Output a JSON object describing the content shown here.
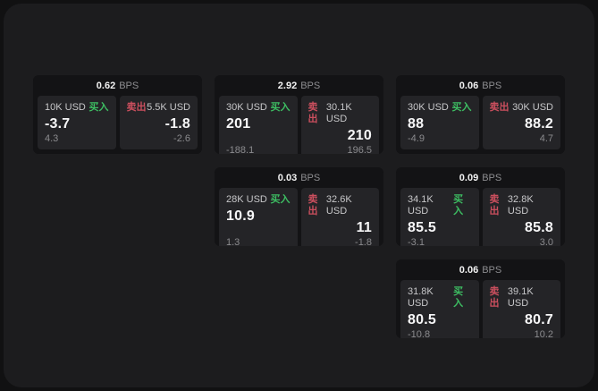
{
  "labels": {
    "bps": "BPS",
    "buy": "买入",
    "sell": "卖出"
  },
  "colors": {
    "buy": "#3dbd62",
    "sell": "#cb4f5e"
  },
  "cards": [
    {
      "bps": "0.62",
      "buy": {
        "amount": "10K USD",
        "value": "-3.7",
        "delta": "4.3"
      },
      "sell": {
        "amount": "5.5K USD",
        "value": "-1.8",
        "delta": "-2.6"
      }
    },
    {
      "bps": "2.92",
      "buy": {
        "amount": "30K USD",
        "value": "201",
        "delta": "-188.1"
      },
      "sell": {
        "amount": "30.1K USD",
        "value": "210",
        "delta": "196.5"
      }
    },
    {
      "bps": "0.06",
      "buy": {
        "amount": "30K USD",
        "value": "88",
        "delta": "-4.9"
      },
      "sell": {
        "amount": "30K USD",
        "value": "88.2",
        "delta": "4.7"
      }
    },
    {
      "bps": "0.03",
      "buy": {
        "amount": "28K USD",
        "value": "10.9",
        "delta": "1.3"
      },
      "sell": {
        "amount": "32.6K USD",
        "value": "11",
        "delta": "-1.8"
      }
    },
    {
      "bps": "0.09",
      "buy": {
        "amount": "34.1K USD",
        "value": "85.5",
        "delta": "-3.1"
      },
      "sell": {
        "amount": "32.8K USD",
        "value": "85.8",
        "delta": "3.0"
      }
    },
    {
      "bps": "0.06",
      "buy": {
        "amount": "31.8K USD",
        "value": "80.5",
        "delta": "-10.8"
      },
      "sell": {
        "amount": "39.1K USD",
        "value": "80.7",
        "delta": "10.2"
      }
    }
  ]
}
